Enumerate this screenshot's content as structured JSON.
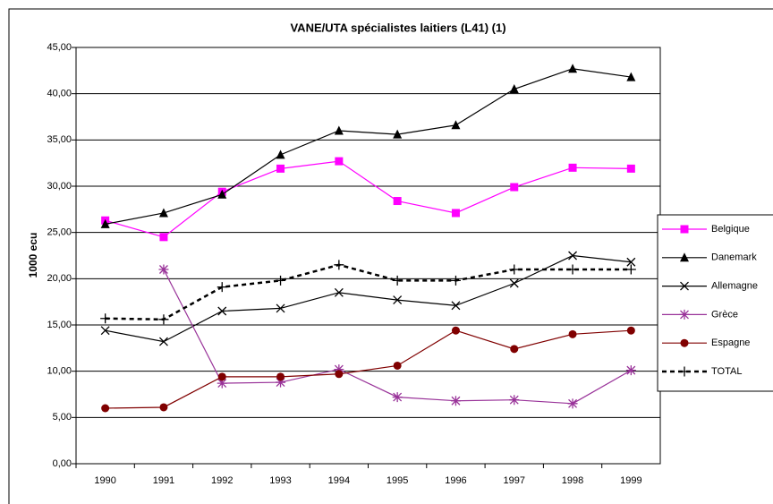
{
  "chart_data": {
    "type": "line",
    "title": "VANE/UTA spécialistes laitiers (L41) (1)",
    "y_label": "1000 ecu",
    "categories": [
      "1990",
      "1991",
      "1992",
      "1993",
      "1994",
      "1995",
      "1996",
      "1997",
      "1998",
      "1999"
    ],
    "series": [
      {
        "name": "Belgique",
        "color": "#ff00ff",
        "marker": "square",
        "line_style": "solid",
        "values": [
          26.3,
          24.5,
          29.4,
          31.9,
          32.7,
          28.4,
          27.1,
          29.9,
          32.0,
          31.9
        ]
      },
      {
        "name": "Danemark",
        "color": "#000000",
        "marker": "triangle",
        "line_style": "solid",
        "values": [
          25.9,
          27.1,
          29.1,
          33.4,
          36.0,
          35.6,
          36.6,
          40.5,
          42.7,
          41.8
        ]
      },
      {
        "name": "Allemagne",
        "color": "#000000",
        "marker": "x",
        "line_style": "solid",
        "values": [
          14.4,
          13.2,
          16.5,
          16.8,
          18.5,
          17.7,
          17.1,
          19.5,
          22.5,
          21.8
        ]
      },
      {
        "name": "Grèce",
        "color": "#993399",
        "marker": "asterisk",
        "line_style": "solid",
        "values": [
          null,
          21.0,
          8.7,
          8.8,
          10.2,
          7.2,
          6.8,
          6.9,
          6.5,
          10.1
        ]
      },
      {
        "name": "Espagne",
        "color": "#800000",
        "marker": "circle",
        "line_style": "solid",
        "values": [
          6.0,
          6.1,
          9.4,
          9.4,
          9.7,
          10.6,
          14.4,
          12.4,
          14.0,
          14.4
        ]
      },
      {
        "name": "TOTAL",
        "color": "#000000",
        "marker": "plus",
        "line_style": "dashed",
        "values": [
          15.7,
          15.6,
          19.1,
          19.8,
          21.5,
          19.8,
          19.8,
          21.0,
          21.0,
          21.0
        ]
      }
    ],
    "ylim": [
      0,
      45
    ],
    "yticks": [
      {
        "value": 0,
        "label": "0,00"
      },
      {
        "value": 5,
        "label": "5,00"
      },
      {
        "value": 10,
        "label": "10,00"
      },
      {
        "value": 15,
        "label": "15,00"
      },
      {
        "value": 20,
        "label": "20,00"
      },
      {
        "value": 25,
        "label": "25,00"
      },
      {
        "value": 30,
        "label": "30,00"
      },
      {
        "value": 35,
        "label": "35,00"
      },
      {
        "value": 40,
        "label": "40,00"
      },
      {
        "value": 45,
        "label": "45,00"
      }
    ],
    "grid": true,
    "legend": "right"
  }
}
